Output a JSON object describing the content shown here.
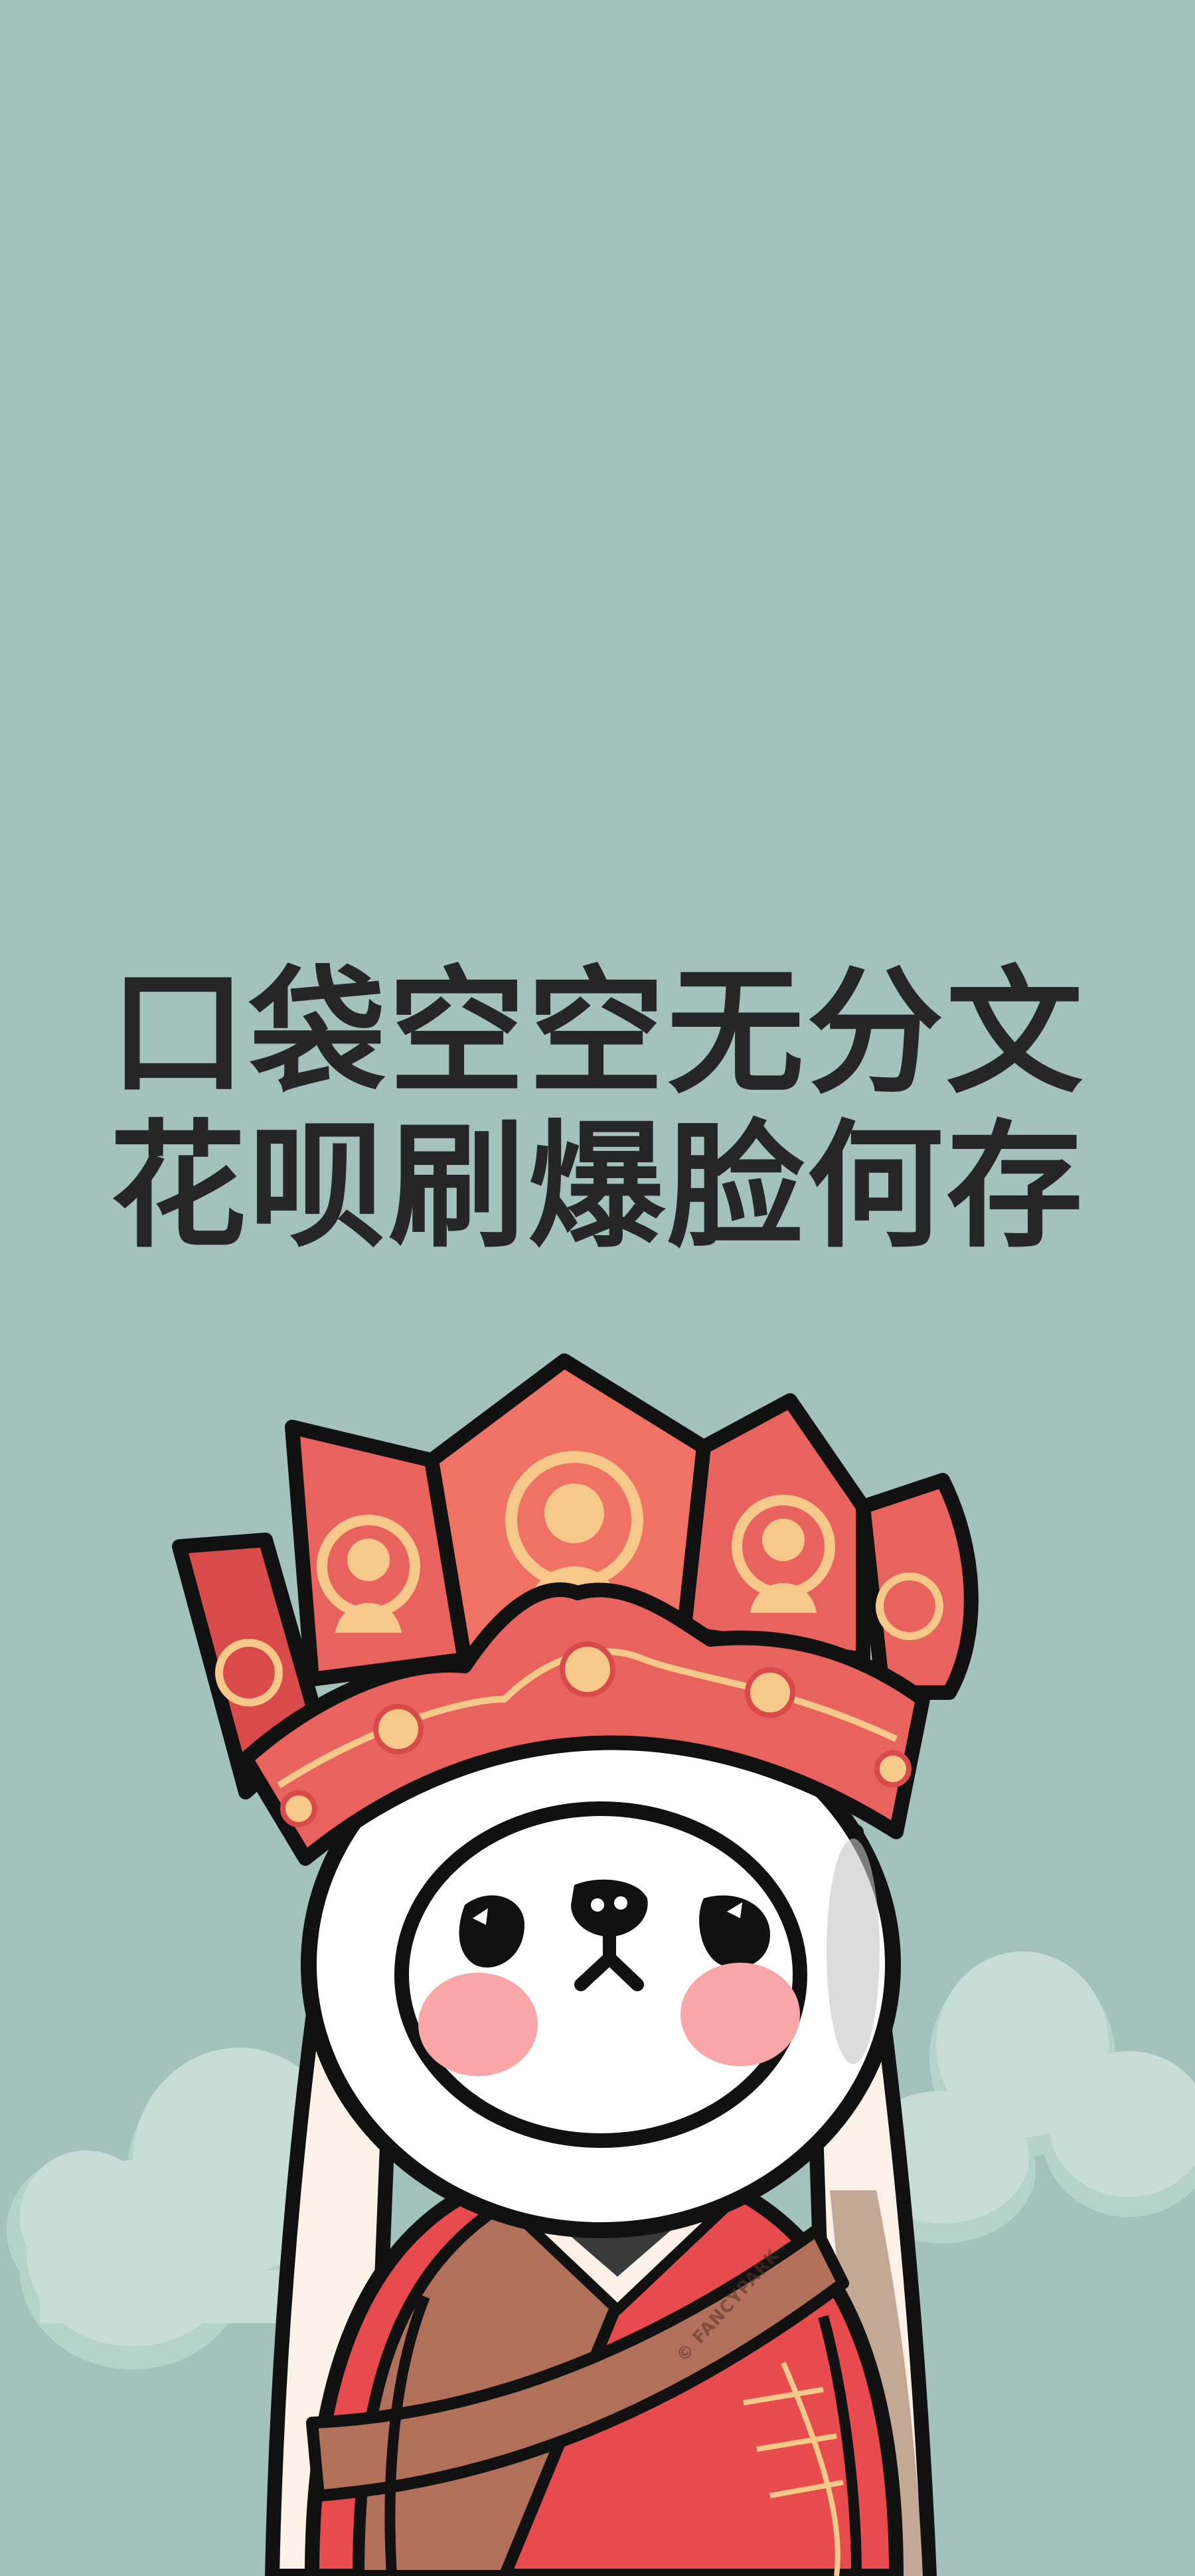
{
  "wallpaper": {
    "background_color": "#a3c3ba",
    "caption": {
      "line1": "口袋空空无分文",
      "line2": "花呗刷爆脸何存"
    },
    "watermark": "© FANCYPARK",
    "character": "monk-panda",
    "colors": {
      "text": "#262626",
      "crown": "#e8625e",
      "robe": "#e84b4d",
      "sash": "#b0705a",
      "veil": "#fbf1e7",
      "cheek": "#f9a6a8",
      "cloud": "#c7ddd5"
    }
  }
}
